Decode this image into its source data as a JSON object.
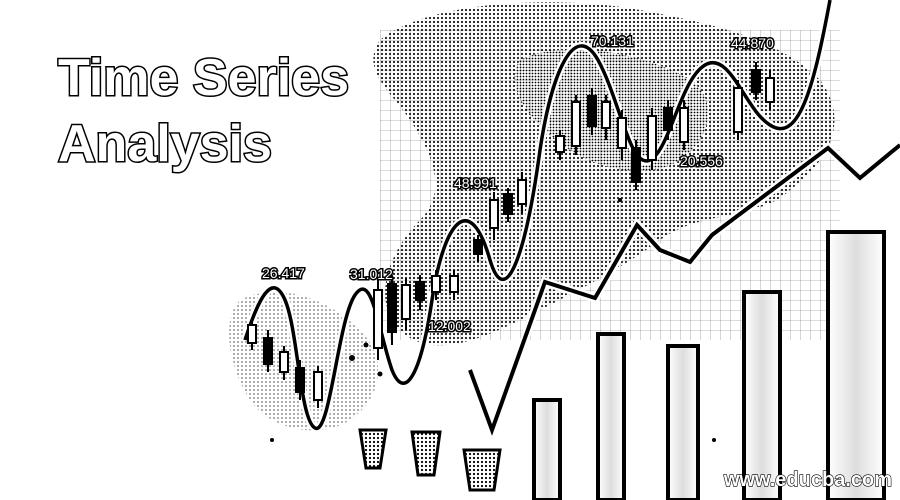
{
  "title": {
    "line1": "Time Series",
    "line2": "Analysis"
  },
  "chart_labels": [
    "26.417",
    "31.012",
    "12.002",
    "48.991",
    "70.131",
    "20.556",
    "44.870"
  ],
  "watermark": "www.educba.com",
  "colors": {
    "ink": "#000000",
    "paper": "#ffffff",
    "halftone": "#9a9a9a"
  }
}
